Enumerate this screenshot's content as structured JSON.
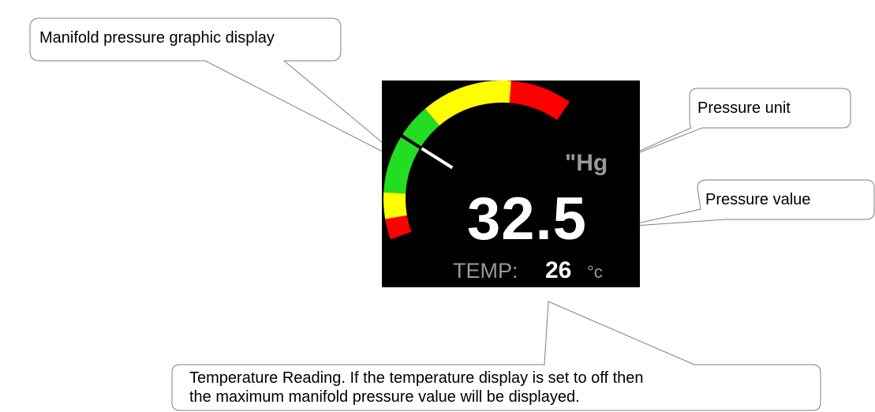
{
  "callouts": {
    "graphic": "Manifold pressure graphic display",
    "unit": "Pressure unit",
    "value": "Pressure value",
    "temperature_line1": "Temperature Reading. If the temperature display is set to off then",
    "temperature_line2": "the maximum manifold pressure value will be displayed."
  },
  "display": {
    "unit": "\"Hg",
    "pressure_value": "32.5",
    "temp_label": "TEMP:",
    "temp_value": "26",
    "temp_unit": "°c"
  },
  "gauge": {
    "needle_position": 0.36,
    "colors": {
      "background": "#000000",
      "green": "#22dd22",
      "yellow": "#ffff00",
      "red": "#ff0000",
      "needle": "#ffffff",
      "tick": "#000000"
    },
    "bands": [
      {
        "color": "red",
        "from": 0.0,
        "to": 0.07
      },
      {
        "color": "yellow",
        "from": 0.07,
        "to": 0.16
      },
      {
        "color": "green",
        "from": 0.16,
        "to": 0.48
      },
      {
        "color": "yellow",
        "from": 0.48,
        "to": 0.79
      },
      {
        "color": "red",
        "from": 0.79,
        "to": 1.0
      }
    ]
  }
}
